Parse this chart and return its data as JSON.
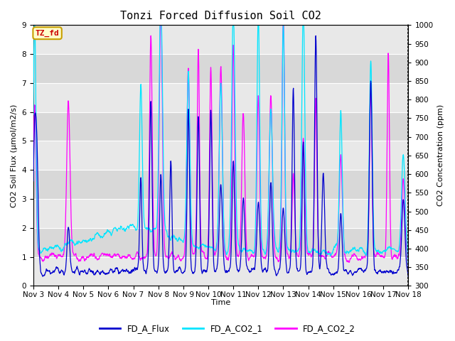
{
  "title": "Tonzi Forced Diffusion Soil CO2",
  "xlabel": "Time",
  "ylabel_left": "CO2 Soil Flux (μmol/m2/s)",
  "ylabel_right": "CO2 Concentration (ppm)",
  "xlim_days": [
    3,
    18
  ],
  "ylim_left": [
    0.0,
    9.0
  ],
  "ylim_right": [
    300,
    1000
  ],
  "yticks_left": [
    0.0,
    1.0,
    2.0,
    3.0,
    4.0,
    5.0,
    6.0,
    7.0,
    8.0,
    9.0
  ],
  "yticks_right": [
    300,
    350,
    400,
    450,
    500,
    550,
    600,
    650,
    700,
    750,
    800,
    850,
    900,
    950,
    1000
  ],
  "xtick_labels": [
    "Nov 3",
    "Nov 4",
    "Nov 5",
    "Nov 6",
    "Nov 7",
    "Nov 8",
    "Nov 9",
    "Nov 10",
    "Nov 11",
    "Nov 12",
    "Nov 13",
    "Nov 14",
    "Nov 15",
    "Nov 16",
    "Nov 17",
    "Nov 18"
  ],
  "colors": {
    "flux": "#0000cd",
    "co2_1": "#00e5ff",
    "co2_2": "#ff00ff"
  },
  "legend_labels": [
    "FD_A_Flux",
    "FD_A_CO2_1",
    "FD_A_CO2_2"
  ],
  "annotation_text": "TZ_fd",
  "annotation_color": "#cc0000",
  "annotation_bg": "#ffffcc",
  "annotation_edge": "#c8a000",
  "band_colors": [
    "#e8e8e8",
    "#d8d8d8"
  ],
  "grid_color": "#ffffff",
  "title_fontsize": 11,
  "label_fontsize": 8,
  "tick_fontsize": 7.5,
  "legend_fontsize": 8.5
}
